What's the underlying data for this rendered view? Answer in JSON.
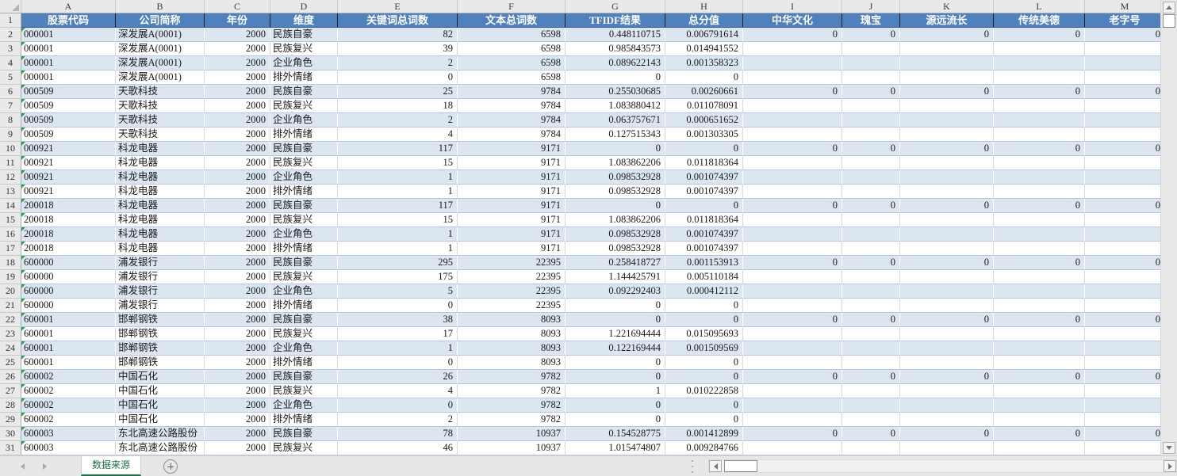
{
  "sheet": {
    "tab_label": "数据来源",
    "first_visible_row": 2,
    "last_visible_row": 31
  },
  "colors": {
    "header_bg": "#4f81bd",
    "header_text": "#ffffff",
    "band_row": "#dce6f1",
    "tab_green": "#1e7145",
    "error_triangle_green": "#2f9e4f"
  },
  "columns": [
    {
      "letter": "A",
      "width": 119,
      "header": "股票代码",
      "align": "al"
    },
    {
      "letter": "B",
      "width": 112,
      "header": "公司简称",
      "align": "al"
    },
    {
      "letter": "C",
      "width": 83,
      "header": "年份",
      "align": "ar"
    },
    {
      "letter": "D",
      "width": 85,
      "header": "维度",
      "align": "al"
    },
    {
      "letter": "E",
      "width": 151,
      "header": "关键词总词数",
      "align": "ar"
    },
    {
      "letter": "F",
      "width": 136,
      "header": "文本总词数",
      "align": "ar"
    },
    {
      "letter": "G",
      "width": 126,
      "header": "TFIDF结果",
      "align": "ar"
    },
    {
      "letter": "H",
      "width": 98,
      "header": "总分值",
      "align": "ar"
    },
    {
      "letter": "I",
      "width": 125,
      "header": "中华文化",
      "align": "ar"
    },
    {
      "letter": "J",
      "width": 73,
      "header": "瑰宝",
      "align": "ar"
    },
    {
      "letter": "K",
      "width": 118,
      "header": "源远流长",
      "align": "ar"
    },
    {
      "letter": "L",
      "width": 115,
      "header": "传统美德",
      "align": "ar"
    },
    {
      "letter": "M",
      "width": 101,
      "header": "老字号",
      "align": "ar"
    }
  ],
  "header_row_number": "1",
  "rows": [
    {
      "n": "2",
      "cells": [
        "000001",
        "深发展A(0001)",
        "2000",
        "民族自豪",
        "82",
        "6598",
        "0.448110715",
        "0.006791614",
        "0",
        "0",
        "0",
        "0",
        "0"
      ]
    },
    {
      "n": "3",
      "cells": [
        "000001",
        "深发展A(0001)",
        "2000",
        "民族复兴",
        "39",
        "6598",
        "0.985843573",
        "0.014941552",
        "",
        "",
        "",
        "",
        ""
      ]
    },
    {
      "n": "4",
      "cells": [
        "000001",
        "深发展A(0001)",
        "2000",
        "企业角色",
        "2",
        "6598",
        "0.089622143",
        "0.001358323",
        "",
        "",
        "",
        "",
        ""
      ]
    },
    {
      "n": "5",
      "cells": [
        "000001",
        "深发展A(0001)",
        "2000",
        "排外情绪",
        "0",
        "6598",
        "0",
        "0",
        "",
        "",
        "",
        "",
        ""
      ]
    },
    {
      "n": "6",
      "cells": [
        "000509",
        "天歌科技",
        "2000",
        "民族自豪",
        "25",
        "9784",
        "0.255030685",
        "0.00260661",
        "0",
        "0",
        "0",
        "0",
        "0"
      ]
    },
    {
      "n": "7",
      "cells": [
        "000509",
        "天歌科技",
        "2000",
        "民族复兴",
        "18",
        "9784",
        "1.083880412",
        "0.011078091",
        "",
        "",
        "",
        "",
        ""
      ]
    },
    {
      "n": "8",
      "cells": [
        "000509",
        "天歌科技",
        "2000",
        "企业角色",
        "2",
        "9784",
        "0.063757671",
        "0.000651652",
        "",
        "",
        "",
        "",
        ""
      ]
    },
    {
      "n": "9",
      "cells": [
        "000509",
        "天歌科技",
        "2000",
        "排外情绪",
        "4",
        "9784",
        "0.127515343",
        "0.001303305",
        "",
        "",
        "",
        "",
        ""
      ]
    },
    {
      "n": "10",
      "cells": [
        "000921",
        "科龙电器",
        "2000",
        "民族自豪",
        "117",
        "9171",
        "0",
        "0",
        "0",
        "0",
        "0",
        "0",
        "0"
      ]
    },
    {
      "n": "11",
      "cells": [
        "000921",
        "科龙电器",
        "2000",
        "民族复兴",
        "15",
        "9171",
        "1.083862206",
        "0.011818364",
        "",
        "",
        "",
        "",
        ""
      ]
    },
    {
      "n": "12",
      "cells": [
        "000921",
        "科龙电器",
        "2000",
        "企业角色",
        "1",
        "9171",
        "0.098532928",
        "0.001074397",
        "",
        "",
        "",
        "",
        ""
      ]
    },
    {
      "n": "13",
      "cells": [
        "000921",
        "科龙电器",
        "2000",
        "排外情绪",
        "1",
        "9171",
        "0.098532928",
        "0.001074397",
        "",
        "",
        "",
        "",
        ""
      ]
    },
    {
      "n": "14",
      "cells": [
        "200018",
        "科龙电器",
        "2000",
        "民族自豪",
        "117",
        "9171",
        "0",
        "0",
        "0",
        "0",
        "0",
        "0",
        "0"
      ]
    },
    {
      "n": "15",
      "cells": [
        "200018",
        "科龙电器",
        "2000",
        "民族复兴",
        "15",
        "9171",
        "1.083862206",
        "0.011818364",
        "",
        "",
        "",
        "",
        ""
      ]
    },
    {
      "n": "16",
      "cells": [
        "200018",
        "科龙电器",
        "2000",
        "企业角色",
        "1",
        "9171",
        "0.098532928",
        "0.001074397",
        "",
        "",
        "",
        "",
        ""
      ]
    },
    {
      "n": "17",
      "cells": [
        "200018",
        "科龙电器",
        "2000",
        "排外情绪",
        "1",
        "9171",
        "0.098532928",
        "0.001074397",
        "",
        "",
        "",
        "",
        ""
      ]
    },
    {
      "n": "18",
      "cells": [
        "600000",
        "浦发银行",
        "2000",
        "民族自豪",
        "295",
        "22395",
        "0.258418727",
        "0.001153913",
        "0",
        "0",
        "0",
        "0",
        "0"
      ]
    },
    {
      "n": "19",
      "cells": [
        "600000",
        "浦发银行",
        "2000",
        "民族复兴",
        "175",
        "22395",
        "1.144425791",
        "0.005110184",
        "",
        "",
        "",
        "",
        ""
      ]
    },
    {
      "n": "20",
      "cells": [
        "600000",
        "浦发银行",
        "2000",
        "企业角色",
        "5",
        "22395",
        "0.092292403",
        "0.000412112",
        "",
        "",
        "",
        "",
        ""
      ]
    },
    {
      "n": "21",
      "cells": [
        "600000",
        "浦发银行",
        "2000",
        "排外情绪",
        "0",
        "22395",
        "0",
        "0",
        "",
        "",
        "",
        "",
        ""
      ]
    },
    {
      "n": "22",
      "cells": [
        "600001",
        "邯郸钢铁",
        "2000",
        "民族自豪",
        "38",
        "8093",
        "0",
        "0",
        "0",
        "0",
        "0",
        "0",
        "0"
      ]
    },
    {
      "n": "23",
      "cells": [
        "600001",
        "邯郸钢铁",
        "2000",
        "民族复兴",
        "17",
        "8093",
        "1.221694444",
        "0.015095693",
        "",
        "",
        "",
        "",
        ""
      ]
    },
    {
      "n": "24",
      "cells": [
        "600001",
        "邯郸钢铁",
        "2000",
        "企业角色",
        "1",
        "8093",
        "0.122169444",
        "0.001509569",
        "",
        "",
        "",
        "",
        ""
      ]
    },
    {
      "n": "25",
      "cells": [
        "600001",
        "邯郸钢铁",
        "2000",
        "排外情绪",
        "0",
        "8093",
        "0",
        "0",
        "",
        "",
        "",
        "",
        ""
      ]
    },
    {
      "n": "26",
      "cells": [
        "600002",
        "中国石化",
        "2000",
        "民族自豪",
        "26",
        "9782",
        "0",
        "0",
        "0",
        "0",
        "0",
        "0",
        "0"
      ]
    },
    {
      "n": "27",
      "cells": [
        "600002",
        "中国石化",
        "2000",
        "民族复兴",
        "4",
        "9782",
        "1",
        "0.010222858",
        "",
        "",
        "",
        "",
        ""
      ]
    },
    {
      "n": "28",
      "cells": [
        "600002",
        "中国石化",
        "2000",
        "企业角色",
        "0",
        "9782",
        "0",
        "0",
        "",
        "",
        "",
        "",
        ""
      ]
    },
    {
      "n": "29",
      "cells": [
        "600002",
        "中国石化",
        "2000",
        "排外情绪",
        "2",
        "9782",
        "0",
        "0",
        "",
        "",
        "",
        "",
        ""
      ]
    },
    {
      "n": "30",
      "cells": [
        "600003",
        "东北高速公路股份",
        "2000",
        "民族自豪",
        "78",
        "10937",
        "0.154528775",
        "0.001412899",
        "0",
        "0",
        "0",
        "0",
        "0"
      ]
    },
    {
      "n": "31",
      "cells": [
        "600003",
        "东北高速公路股份",
        "2000",
        "民族复兴",
        "46",
        "10937",
        "1.015474807",
        "0.009284766",
        "",
        "",
        "",
        "",
        ""
      ]
    }
  ]
}
